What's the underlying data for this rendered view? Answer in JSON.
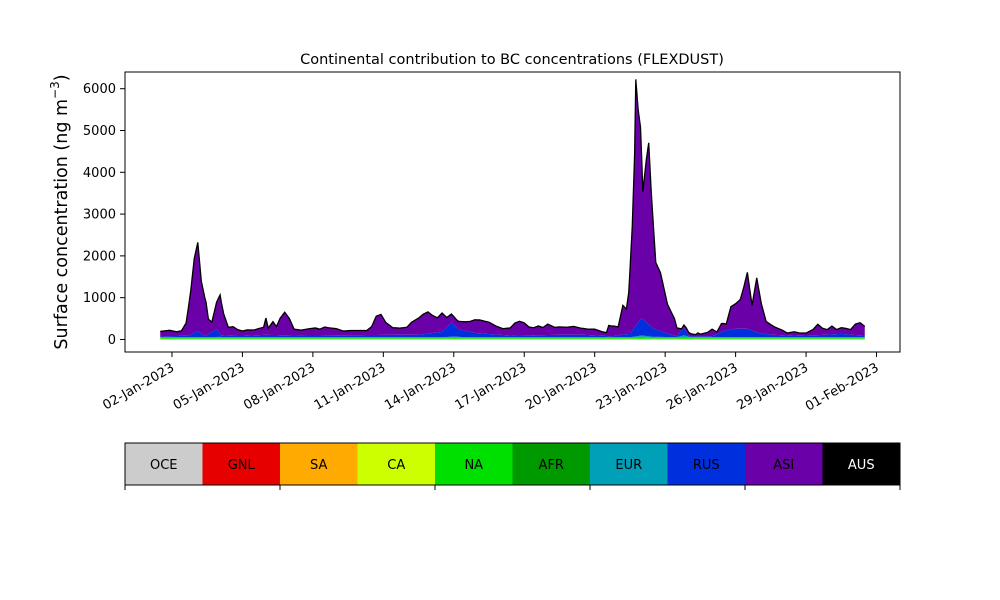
{
  "chart_data": {
    "type": "area",
    "title": "Continental contribution to BC concentrations (FLEXDUST)",
    "xlabel": "",
    "ylabel": "Surface concentration (ng m",
    "ylabel_sup": "−3",
    "ylabel_close": ")",
    "x_range": [
      "2022-12-31",
      "2023-02-02"
    ],
    "ylim": [
      -300,
      6400
    ],
    "yticks": [
      0,
      1000,
      2000,
      3000,
      4000,
      5000,
      6000
    ],
    "xticks": [
      {
        "date": "2023-01-02",
        "label": "02-Jan-2023"
      },
      {
        "date": "2023-01-05",
        "label": "05-Jan-2023"
      },
      {
        "date": "2023-01-08",
        "label": "08-Jan-2023"
      },
      {
        "date": "2023-01-11",
        "label": "11-Jan-2023"
      },
      {
        "date": "2023-01-14",
        "label": "14-Jan-2023"
      },
      {
        "date": "2023-01-17",
        "label": "17-Jan-2023"
      },
      {
        "date": "2023-01-20",
        "label": "20-Jan-2023"
      },
      {
        "date": "2023-01-23",
        "label": "23-Jan-2023"
      },
      {
        "date": "2023-01-26",
        "label": "26-Jan-2023"
      },
      {
        "date": "2023-01-29",
        "label": "29-Jan-2023"
      },
      {
        "date": "2023-02-01",
        "label": "01-Feb-2023"
      }
    ],
    "grid": false,
    "series": [
      {
        "name": "OCE",
        "color": "#cccccc",
        "values": [
          [
            0,
            2.0
          ],
          [
            30.0,
            2.0
          ]
        ]
      },
      {
        "name": "GNL",
        "color": "#e60000",
        "values": [
          [
            0,
            5.0
          ],
          [
            30.0,
            5.0
          ]
        ]
      },
      {
        "name": "SA",
        "color": "#ffaa00",
        "values": [
          [
            0,
            5.0
          ],
          [
            30.0,
            5.0
          ]
        ]
      },
      {
        "name": "CA",
        "color": "#ccff00",
        "values": [
          [
            0,
            5.0
          ],
          [
            30.0,
            5.0
          ]
        ]
      },
      {
        "name": "NA",
        "color": "#00e000",
        "values": [
          [
            0,
            20.0
          ],
          [
            2.0,
            20.0
          ],
          [
            2.5,
            30.0
          ],
          [
            3.0,
            20.0
          ],
          [
            12.0,
            20.0
          ],
          [
            12.5,
            40.0
          ],
          [
            13.0,
            20.0
          ],
          [
            20.0,
            20.0
          ],
          [
            20.5,
            45.0
          ],
          [
            21.0,
            20.0
          ],
          [
            30.0,
            20.0
          ]
        ]
      },
      {
        "name": "AFR",
        "color": "#009900",
        "values": [
          [
            0,
            5.0
          ],
          [
            30.0,
            5.0
          ]
        ]
      },
      {
        "name": "EUR",
        "color": "#00a0b8",
        "values": [
          [
            0,
            10.0
          ],
          [
            20.0,
            10.0
          ],
          [
            20.5,
            30.0
          ],
          [
            21.0,
            20.0
          ],
          [
            22.0,
            15.0
          ],
          [
            22.3,
            60.0
          ],
          [
            22.6,
            15.0
          ],
          [
            30.0,
            10.0
          ]
        ]
      },
      {
        "name": "RUS",
        "color": "#0030dd",
        "values": [
          [
            0,
            20.0
          ],
          [
            1.2,
            40.0
          ],
          [
            1.6,
            150.0
          ],
          [
            1.9,
            30.0
          ],
          [
            2.4,
            180.0
          ],
          [
            2.6,
            40.0
          ],
          [
            3.5,
            30.0
          ],
          [
            4.5,
            60.0
          ],
          [
            6.0,
            40.0
          ],
          [
            10.0,
            60.0
          ],
          [
            11.0,
            60.0
          ],
          [
            12.0,
            130.0
          ],
          [
            12.4,
            340.0
          ],
          [
            12.7,
            180.0
          ],
          [
            13.5,
            100.0
          ],
          [
            15.0,
            40.0
          ],
          [
            17.0,
            60.0
          ],
          [
            18.0,
            60.0
          ],
          [
            19.0,
            30.0
          ],
          [
            19.2,
            20.0
          ],
          [
            19.6,
            60.0
          ],
          [
            20.0,
            80.0
          ],
          [
            20.5,
            420.0
          ],
          [
            20.8,
            280.0
          ],
          [
            21.0,
            200.0
          ],
          [
            21.5,
            100.0
          ],
          [
            22.0,
            20.0
          ],
          [
            22.3,
            180.0
          ],
          [
            22.5,
            20.0
          ],
          [
            23.0,
            20.0
          ],
          [
            23.5,
            20.0
          ],
          [
            24.0,
            150.0
          ],
          [
            24.5,
            200.0
          ],
          [
            25.0,
            200.0
          ],
          [
            25.5,
            100.0
          ],
          [
            26.0,
            60.0
          ],
          [
            27.0,
            30.0
          ],
          [
            28.0,
            50.0
          ],
          [
            29.0,
            80.0
          ],
          [
            30.0,
            40.0
          ]
        ]
      },
      {
        "name": "ASI",
        "color": "#6a00a8",
        "values": [
          [
            0,
            120.0
          ],
          [
            0.4,
            140.0
          ],
          [
            0.7,
            100.0
          ],
          [
            0.9,
            120.0
          ],
          [
            1.1,
            300.0
          ],
          [
            1.3,
            1050.0
          ],
          [
            1.45,
            1780.0
          ],
          [
            1.6,
            2120.0
          ],
          [
            1.75,
            1250.0
          ],
          [
            1.95,
            800.0
          ],
          [
            2.05,
            360.0
          ],
          [
            2.2,
            240.0
          ],
          [
            2.4,
            650.0
          ],
          [
            2.55,
            930.0
          ],
          [
            2.7,
            520.0
          ],
          [
            2.9,
            200.0
          ],
          [
            3.1,
            220.0
          ],
          [
            3.3,
            150.0
          ],
          [
            3.5,
            120.0
          ],
          [
            3.7,
            140.0
          ],
          [
            4.0,
            130.0
          ],
          [
            4.2,
            160.0
          ],
          [
            4.4,
            180.0
          ],
          [
            4.5,
            400.0
          ],
          [
            4.6,
            160.0
          ],
          [
            4.8,
            320.0
          ],
          [
            4.95,
            200.0
          ],
          [
            5.1,
            400.0
          ],
          [
            5.3,
            550.0
          ],
          [
            5.5,
            400.0
          ],
          [
            5.7,
            150.0
          ],
          [
            6.0,
            130.0
          ],
          [
            6.3,
            160.0
          ],
          [
            6.6,
            180.0
          ],
          [
            6.8,
            150.0
          ],
          [
            7.0,
            200.0
          ],
          [
            7.2,
            180.0
          ],
          [
            7.5,
            160.0
          ],
          [
            7.8,
            100.0
          ],
          [
            8.1,
            110.0
          ],
          [
            8.5,
            110.0
          ],
          [
            8.8,
            110.0
          ],
          [
            9.0,
            200.0
          ],
          [
            9.2,
            450.0
          ],
          [
            9.4,
            490.0
          ],
          [
            9.6,
            300.0
          ],
          [
            9.9,
            170.0
          ],
          [
            10.2,
            160.0
          ],
          [
            10.5,
            180.0
          ],
          [
            10.7,
            300.0
          ],
          [
            11.0,
            400.0
          ],
          [
            11.2,
            480.0
          ],
          [
            11.4,
            520.0
          ],
          [
            11.6,
            420.0
          ],
          [
            11.8,
            350.0
          ],
          [
            12.0,
            450.0
          ],
          [
            12.2,
            230.0
          ],
          [
            12.4,
            200.0
          ],
          [
            12.6,
            180.0
          ],
          [
            12.8,
            200.0
          ],
          [
            13.0,
            220.0
          ],
          [
            13.2,
            250.0
          ],
          [
            13.4,
            310.0
          ],
          [
            13.6,
            320.0
          ],
          [
            13.8,
            300.0
          ],
          [
            14.0,
            280.0
          ],
          [
            14.3,
            200.0
          ],
          [
            14.6,
            150.0
          ],
          [
            14.9,
            180.0
          ],
          [
            15.1,
            300.0
          ],
          [
            15.3,
            340.0
          ],
          [
            15.5,
            300.0
          ],
          [
            15.7,
            200.0
          ],
          [
            15.9,
            180.0
          ],
          [
            16.1,
            220.0
          ],
          [
            16.3,
            180.0
          ],
          [
            16.5,
            260.0
          ],
          [
            16.8,
            180.0
          ],
          [
            17.0,
            190.0
          ],
          [
            17.3,
            180.0
          ],
          [
            17.6,
            200.0
          ],
          [
            17.9,
            160.0
          ],
          [
            18.2,
            140.0
          ],
          [
            18.5,
            150.0
          ],
          [
            18.8,
            100.0
          ],
          [
            19.0,
            80.0
          ],
          [
            19.1,
            260.0
          ],
          [
            19.3,
            240.0
          ],
          [
            19.5,
            200.0
          ],
          [
            19.7,
            700.0
          ],
          [
            19.85,
            600.0
          ],
          [
            19.95,
            1000.0
          ],
          [
            20.1,
            2500.0
          ],
          [
            20.2,
            4150.0
          ],
          [
            20.25,
            5900.0
          ],
          [
            20.35,
            5100.0
          ],
          [
            20.45,
            4600.0
          ],
          [
            20.55,
            3050.0
          ],
          [
            20.7,
            3900.0
          ],
          [
            20.8,
            4350.0
          ],
          [
            20.9,
            3300.0
          ],
          [
            21.1,
            1600.0
          ],
          [
            21.3,
            1400.0
          ],
          [
            21.6,
            700.0
          ],
          [
            21.8,
            500.0
          ],
          [
            21.9,
            400.0
          ],
          [
            22.0,
            200.0
          ],
          [
            22.2,
            40.0
          ],
          [
            22.4,
            90.0
          ],
          [
            22.6,
            60.0
          ],
          [
            22.8,
            40.0
          ],
          [
            22.9,
            80.0
          ],
          [
            23.0,
            50.0
          ],
          [
            23.3,
            90.0
          ],
          [
            23.5,
            170.0
          ],
          [
            23.7,
            50.0
          ],
          [
            23.9,
            200.0
          ],
          [
            24.1,
            150.0
          ],
          [
            24.3,
            550.0
          ],
          [
            24.5,
            600.0
          ],
          [
            24.7,
            700.0
          ],
          [
            24.85,
            1000.0
          ],
          [
            25.0,
            1350.0
          ],
          [
            25.2,
            600.0
          ],
          [
            25.4,
            1300.0
          ],
          [
            25.6,
            700.0
          ],
          [
            25.8,
            300.0
          ],
          [
            26.0,
            240.0
          ],
          [
            26.2,
            180.0
          ],
          [
            26.5,
            120.0
          ],
          [
            26.7,
            60.0
          ],
          [
            27.0,
            100.0
          ],
          [
            27.2,
            70.0
          ],
          [
            27.5,
            60.0
          ],
          [
            27.8,
            140.0
          ],
          [
            28.0,
            260.0
          ],
          [
            28.2,
            160.0
          ],
          [
            28.4,
            120.0
          ],
          [
            28.6,
            200.0
          ],
          [
            28.8,
            110.0
          ],
          [
            29.0,
            150.0
          ],
          [
            29.2,
            140.0
          ],
          [
            29.4,
            120.0
          ],
          [
            29.6,
            260.0
          ],
          [
            29.8,
            300.0
          ],
          [
            30.0,
            220.0
          ]
        ]
      },
      {
        "name": "AUS",
        "color": "#000000",
        "values": [
          [
            0,
            0.0
          ],
          [
            30.0,
            0.0
          ]
        ]
      }
    ]
  },
  "legend": {
    "items": [
      {
        "label": "OCE",
        "color": "#cccccc"
      },
      {
        "label": "GNL",
        "color": "#e60000"
      },
      {
        "label": "SA",
        "color": "#ffaa00"
      },
      {
        "label": "CA",
        "color": "#ccff00"
      },
      {
        "label": "NA",
        "color": "#00e000"
      },
      {
        "label": "AFR",
        "color": "#009900"
      },
      {
        "label": "EUR",
        "color": "#00a0b8"
      },
      {
        "label": "RUS",
        "color": "#0030dd"
      },
      {
        "label": "ASI",
        "color": "#6a00a8"
      },
      {
        "label": "AUS",
        "color": "#000000",
        "text_color": "#ffffff"
      }
    ]
  }
}
